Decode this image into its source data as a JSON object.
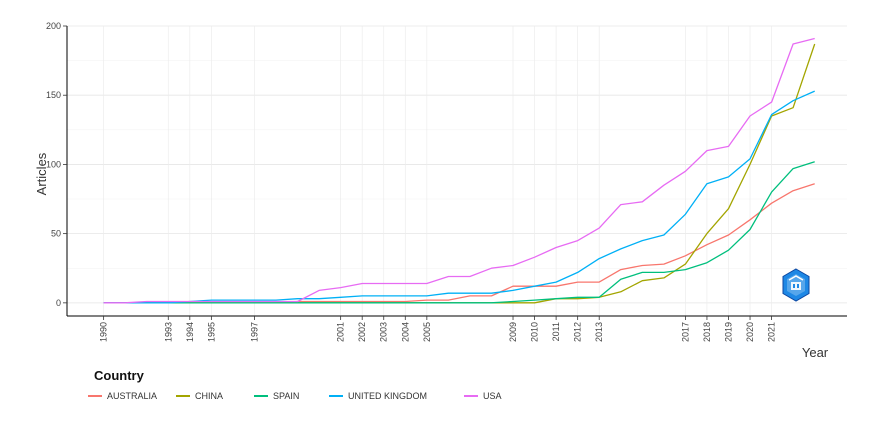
{
  "chart_data": {
    "type": "line",
    "xlabel": "Year",
    "ylabel": "Articles",
    "ylim": [
      0,
      200
    ],
    "xlim": [
      1990,
      2023
    ],
    "yticks": [
      0,
      50,
      100,
      150,
      200
    ],
    "xticks": [
      1990,
      1993,
      1994,
      1995,
      1997,
      2001,
      2002,
      2003,
      2004,
      2005,
      2009,
      2010,
      2011,
      2012,
      2013,
      2017,
      2018,
      2019,
      2020,
      2021
    ],
    "grid": true,
    "legend_title": "Country",
    "legend_position": "bottom-left",
    "x": [
      1990,
      1991,
      1992,
      1993,
      1994,
      1995,
      1996,
      1997,
      1998,
      1999,
      2000,
      2001,
      2002,
      2003,
      2004,
      2005,
      2006,
      2007,
      2008,
      2009,
      2010,
      2011,
      2012,
      2013,
      2014,
      2015,
      2016,
      2017,
      2018,
      2019,
      2020,
      2021,
      2022,
      2023
    ],
    "series": [
      {
        "name": "AUSTRALIA",
        "color": "#F8766D",
        "values": [
          0,
          0,
          0,
          0,
          0,
          0,
          0,
          0,
          0,
          1,
          1,
          1,
          1,
          1,
          1,
          2,
          2,
          5,
          5,
          12,
          12,
          12,
          15,
          15,
          24,
          27,
          28,
          34,
          42,
          49,
          60,
          72,
          81,
          86
        ]
      },
      {
        "name": "CHINA",
        "color": "#A3A500",
        "values": [
          0,
          0,
          0,
          0,
          0,
          0,
          0,
          0,
          0,
          0,
          0,
          0,
          0,
          0,
          0,
          0,
          0,
          0,
          0,
          0,
          0,
          3,
          3,
          4,
          8,
          16,
          18,
          28,
          50,
          68,
          100,
          135,
          141,
          187
        ]
      },
      {
        "name": "SPAIN",
        "color": "#00BF7D",
        "values": [
          0,
          0,
          0,
          0,
          0,
          0,
          0,
          0,
          0,
          0,
          0,
          0,
          0,
          0,
          0,
          0,
          0,
          0,
          0,
          1,
          2,
          3,
          4,
          4,
          17,
          22,
          22,
          24,
          29,
          38,
          53,
          80,
          97,
          102
        ]
      },
      {
        "name": "UNITED KINGDOM",
        "color": "#00B0F6",
        "values": [
          0,
          0,
          0,
          0,
          1,
          2,
          2,
          2,
          2,
          3,
          3,
          4,
          5,
          5,
          5,
          5,
          7,
          7,
          7,
          9,
          12,
          15,
          22,
          32,
          39,
          45,
          49,
          64,
          86,
          91,
          104,
          136,
          146,
          153
        ]
      },
      {
        "name": "USA",
        "color": "#E76BF3",
        "values": [
          0,
          0,
          1,
          1,
          1,
          1,
          1,
          1,
          1,
          1,
          9,
          11,
          14,
          14,
          14,
          14,
          19,
          19,
          25,
          27,
          33,
          40,
          45,
          54,
          71,
          73,
          85,
          95,
          110,
          113,
          135,
          145,
          187,
          191
        ]
      }
    ]
  }
}
